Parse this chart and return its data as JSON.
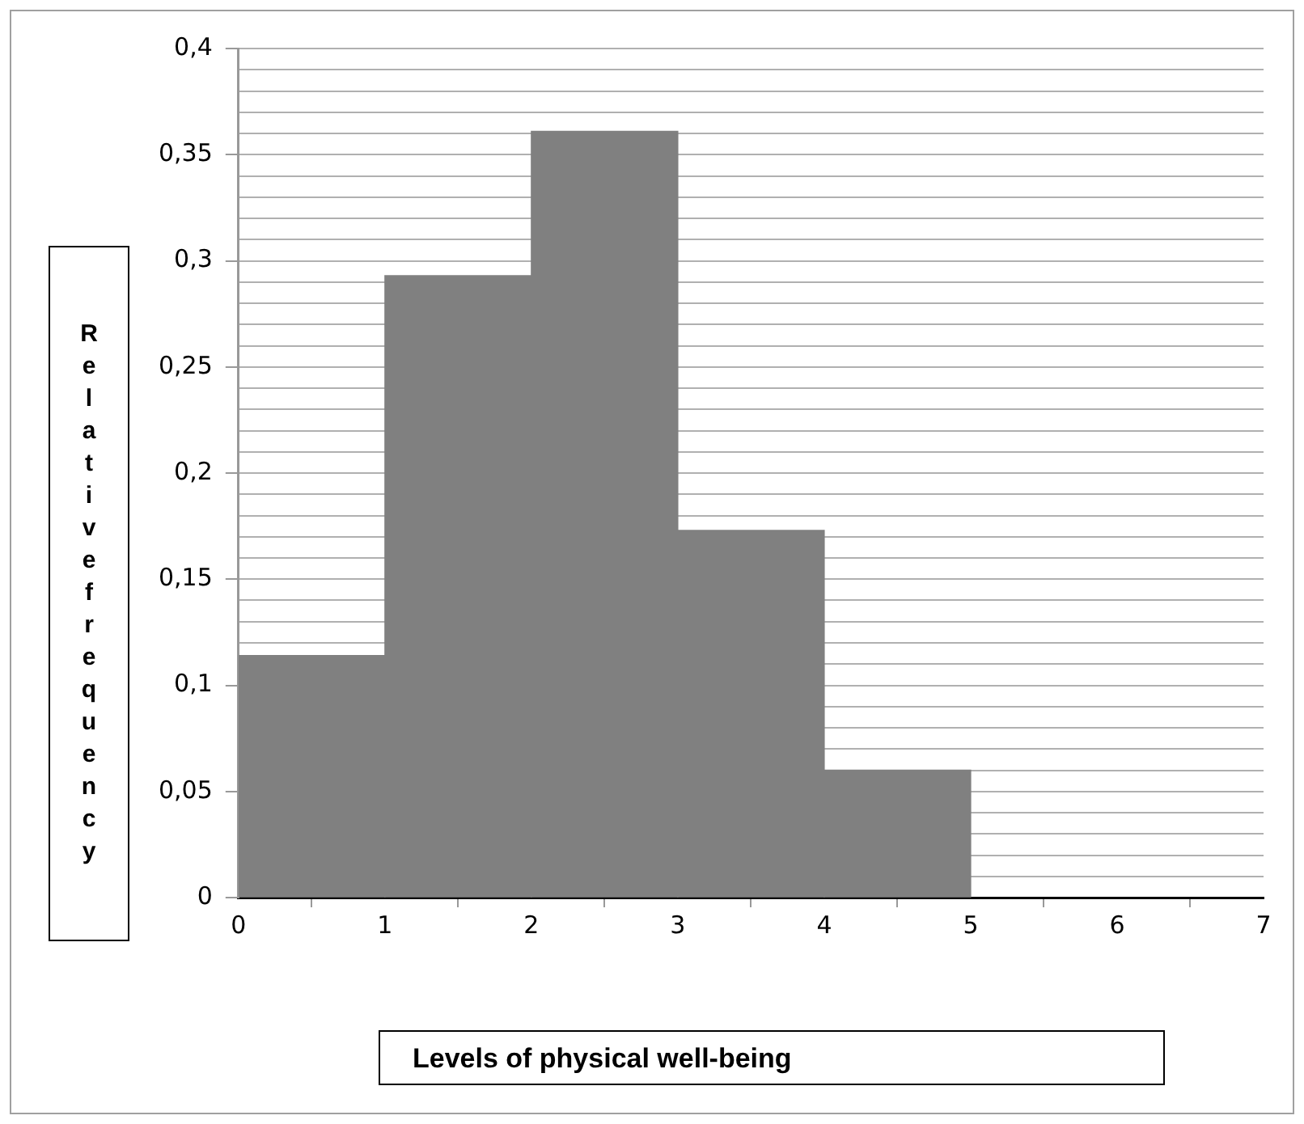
{
  "chart_data": {
    "type": "histogram",
    "xlabel": "Levels of physical well-being",
    "ylabel": "Relative frequency",
    "bins": [
      0,
      1,
      2,
      3,
      4,
      5
    ],
    "values": [
      0.114,
      0.293,
      0.361,
      0.173,
      0.06
    ],
    "color": "#808080",
    "xlim": [
      0,
      7
    ],
    "xticks": [
      0,
      1,
      2,
      3,
      4,
      5,
      6,
      7
    ],
    "ylim": [
      0,
      0.4
    ],
    "yticks": [
      {
        "value": 0,
        "label": "0"
      },
      {
        "value": 0.01,
        "label": null
      },
      {
        "value": 0.02,
        "label": null
      },
      {
        "value": 0.03,
        "label": null
      },
      {
        "value": 0.04,
        "label": null
      },
      {
        "value": 0.05,
        "label": "0,05"
      },
      {
        "value": 0.06,
        "label": null
      },
      {
        "value": 0.07,
        "label": null
      },
      {
        "value": 0.08,
        "label": null
      },
      {
        "value": 0.09,
        "label": null
      },
      {
        "value": 0.1,
        "label": "0,1"
      },
      {
        "value": 0.11,
        "label": null
      },
      {
        "value": 0.12,
        "label": null
      },
      {
        "value": 0.13,
        "label": null
      },
      {
        "value": 0.14,
        "label": null
      },
      {
        "value": 0.15,
        "label": "0,15"
      },
      {
        "value": 0.16,
        "label": null
      },
      {
        "value": 0.17,
        "label": null
      },
      {
        "value": 0.18,
        "label": null
      },
      {
        "value": 0.19,
        "label": null
      },
      {
        "value": 0.2,
        "label": "0,2"
      },
      {
        "value": 0.21,
        "label": null
      },
      {
        "value": 0.22,
        "label": null
      },
      {
        "value": 0.23,
        "label": null
      },
      {
        "value": 0.24,
        "label": null
      },
      {
        "value": 0.25,
        "label": "0,25"
      },
      {
        "value": 0.26,
        "label": null
      },
      {
        "value": 0.27,
        "label": null
      },
      {
        "value": 0.28,
        "label": null
      },
      {
        "value": 0.29,
        "label": null
      },
      {
        "value": 0.3,
        "label": "0,3"
      },
      {
        "value": 0.31,
        "label": null
      },
      {
        "value": 0.32,
        "label": null
      },
      {
        "value": 0.33,
        "label": null
      },
      {
        "value": 0.34,
        "label": null
      },
      {
        "value": 0.35,
        "label": "0,35"
      },
      {
        "value": 0.36,
        "label": null
      },
      {
        "value": 0.37,
        "label": null
      },
      {
        "value": 0.38,
        "label": null
      },
      {
        "value": 0.39,
        "label": null
      },
      {
        "value": 0.4,
        "label": "0,4"
      }
    ],
    "grid": "y",
    "legend": false
  }
}
